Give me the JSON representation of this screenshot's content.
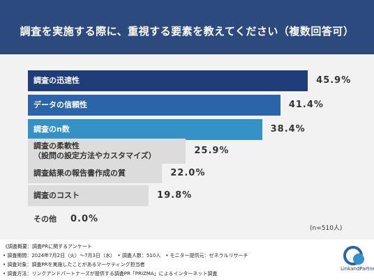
{
  "chart_data": {
    "type": "barh",
    "title": "調査を実施する際に、重視する要素を教えてください（複数回答可）",
    "categories": [
      "調査の迅速性",
      "データの信頼性",
      "調査のn数",
      "調査の柔軟性\n（設問の設定方法やカスタマイズ）",
      "調査結果の報告書作成の質",
      "調査のコスト",
      "その他"
    ],
    "values": [
      45.9,
      41.4,
      38.4,
      25.9,
      22.0,
      19.8,
      0.0
    ],
    "value_labels": [
      "45.9%",
      "41.4%",
      "38.4%",
      "25.9%",
      "22.0%",
      "19.8%",
      "0.0%"
    ],
    "colors": [
      "#1f3d78",
      "#2b64a9",
      "#3592c7",
      "#dcdcdc",
      "#dcdcdc",
      "#dcdcdc",
      "#dcdcdc"
    ],
    "note": "(n=510人)"
  },
  "footer": {
    "lines": [
      "《調査概要：調査PRに関するアンケート",
      "• 調査期間：2024年7月2日（火）〜7月3日（水）　• 調査人数：510人　• モニター提供元：ゼネラルリサーチ",
      "• 調査対象：調査PRを実施したことがあるマーケティング担当者",
      "• 調査方法：リンクアンドパートナーズが提供する調査PR「PRIZMA」によるインターネット調査"
    ],
    "logo": "LinkandPartners"
  }
}
